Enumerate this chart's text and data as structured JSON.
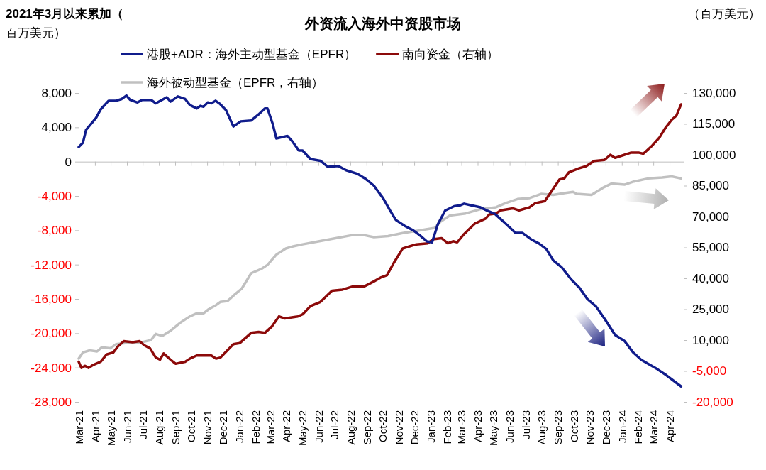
{
  "chart_data": {
    "type": "line",
    "title": "外资流入海外中资股市场",
    "ylabel": "2021年3月以来累加（百万美元）",
    "annotations": [
      "（百万美元）"
    ],
    "legend": "top",
    "xlim": [
      "2021-03-01",
      "2024-04-28"
    ],
    "xticks": [
      {
        "value": "2021-03-01",
        "label": "Mar-21"
      },
      {
        "value": "2021-04-01",
        "label": "Apr-21"
      },
      {
        "value": "2021-05-01",
        "label": "May-21"
      },
      {
        "value": "2021-06-01",
        "label": "Jun-21"
      },
      {
        "value": "2021-07-01",
        "label": "Jul-21"
      },
      {
        "value": "2021-08-01",
        "label": "Aug-21"
      },
      {
        "value": "2021-09-01",
        "label": "Sep-21"
      },
      {
        "value": "2021-10-01",
        "label": "Oct-21"
      },
      {
        "value": "2021-11-01",
        "label": "Nov-21"
      },
      {
        "value": "2021-12-01",
        "label": "Dec-21"
      },
      {
        "value": "2022-01-01",
        "label": "Jan-22"
      },
      {
        "value": "2022-02-01",
        "label": "Feb-22"
      },
      {
        "value": "2022-03-01",
        "label": "Mar-22"
      },
      {
        "value": "2022-04-01",
        "label": "Apr-22"
      },
      {
        "value": "2022-05-01",
        "label": "May-22"
      },
      {
        "value": "2022-06-01",
        "label": "Jun-22"
      },
      {
        "value": "2022-07-01",
        "label": "Jul-22"
      },
      {
        "value": "2022-08-01",
        "label": "Aug-22"
      },
      {
        "value": "2022-09-01",
        "label": "Sep-22"
      },
      {
        "value": "2022-10-01",
        "label": "Oct-22"
      },
      {
        "value": "2022-11-01",
        "label": "Nov-22"
      },
      {
        "value": "2022-12-01",
        "label": "Dec-22"
      },
      {
        "value": "2023-01-01",
        "label": "Jan-23"
      },
      {
        "value": "2023-02-01",
        "label": "Feb-23"
      },
      {
        "value": "2023-03-01",
        "label": "Mar-23"
      },
      {
        "value": "2023-04-01",
        "label": "Apr-23"
      },
      {
        "value": "2023-05-01",
        "label": "May-23"
      },
      {
        "value": "2023-06-01",
        "label": "Jun-23"
      },
      {
        "value": "2023-07-01",
        "label": "Jul-23"
      },
      {
        "value": "2023-08-01",
        "label": "Aug-23"
      },
      {
        "value": "2023-09-01",
        "label": "Sep-23"
      },
      {
        "value": "2023-10-01",
        "label": "Oct-23"
      },
      {
        "value": "2023-11-01",
        "label": "Nov-23"
      },
      {
        "value": "2023-12-01",
        "label": "Dec-23"
      },
      {
        "value": "2024-01-01",
        "label": "Jan-24"
      },
      {
        "value": "2024-02-01",
        "label": "Feb-24"
      },
      {
        "value": "2024-03-01",
        "label": "Mar-24"
      },
      {
        "value": "2024-04-01",
        "label": "Apr-24"
      }
    ],
    "ylim": [
      -28000,
      8000
    ],
    "yticks": [
      {
        "value": 8000,
        "label": "8,000"
      },
      {
        "value": 4000,
        "label": "4,000"
      },
      0,
      {
        "value": -4000,
        "label": "-4,000"
      },
      {
        "value": -8000,
        "label": "-8,000"
      },
      {
        "value": -12000,
        "label": "-12,000"
      },
      {
        "value": -16000,
        "label": "-16,000"
      },
      {
        "value": -20000,
        "label": "-20,000"
      },
      {
        "value": -24000,
        "label": "-24,000"
      },
      {
        "value": -28000,
        "label": "-28,000"
      }
    ],
    "y2lim": [
      -20000,
      130000
    ],
    "y2ticks": [
      {
        "value": 130000,
        "label": "130,000"
      },
      {
        "value": 115000,
        "label": "115,000"
      },
      {
        "value": 100000,
        "label": "100,000"
      },
      {
        "value": 85000,
        "label": "85,000"
      },
      {
        "value": 70000,
        "label": "70,000"
      },
      {
        "value": 55000,
        "label": "55,000"
      },
      {
        "value": 40000,
        "label": "40,000"
      },
      {
        "value": 25000,
        "label": "25,000"
      },
      {
        "value": 10000,
        "label": "10,000"
      },
      {
        "value": -5000,
        "label": "-5,000"
      },
      {
        "value": -20000,
        "label": "-20,000"
      }
    ],
    "series": [
      {
        "name": "港股+ADR：海外主动型基金（EPFR）",
        "color": "#101c8c",
        "x": [
          "2021-03-01",
          "2021-03-09",
          "2021-03-15",
          "2021-04-03",
          "2021-04-12",
          "2021-04-27",
          "2021-05-11",
          "2021-05-22",
          "2021-05-31",
          "2021-06-07",
          "2021-06-21",
          "2021-06-30",
          "2021-07-17",
          "2021-07-26",
          "2021-08-16",
          "2021-08-23",
          "2021-09-06",
          "2021-09-20",
          "2021-09-29",
          "2021-10-12",
          "2021-10-19",
          "2021-10-25",
          "2021-11-02",
          "2021-11-09",
          "2021-11-17",
          "2021-11-26",
          "2021-12-07",
          "2021-12-21",
          "2022-01-04",
          "2022-01-24",
          "2022-02-07",
          "2022-02-19",
          "2022-02-24",
          "2022-03-06",
          "2022-03-13",
          "2022-04-03",
          "2022-04-12",
          "2022-04-25",
          "2022-05-02",
          "2022-05-17",
          "2022-06-05",
          "2022-06-19",
          "2022-07-09",
          "2022-07-24",
          "2022-08-14",
          "2022-08-30",
          "2022-09-15",
          "2022-10-03",
          "2022-10-16",
          "2022-10-27",
          "2022-11-13",
          "2022-11-29",
          "2022-12-12",
          "2022-12-25",
          "2023-01-04",
          "2023-01-15",
          "2023-01-29",
          "2023-02-15",
          "2023-02-26",
          "2023-03-06",
          "2023-03-20",
          "2023-04-05",
          "2023-04-19",
          "2023-05-04",
          "2023-05-24",
          "2023-06-12",
          "2023-06-25",
          "2023-07-13",
          "2023-07-26",
          "2023-08-10",
          "2023-08-23",
          "2023-09-08",
          "2023-09-26",
          "2023-10-12",
          "2023-10-27",
          "2023-11-13",
          "2023-11-30",
          "2023-12-19",
          "2024-01-06",
          "2024-01-22",
          "2024-02-07",
          "2024-03-09",
          "2024-03-26",
          "2024-04-23"
        ],
        "values": [
          1700,
          2200,
          3700,
          5100,
          6100,
          7100,
          7100,
          7300,
          7700,
          7200,
          6900,
          7200,
          7200,
          6800,
          7500,
          7000,
          7600,
          7300,
          6600,
          6200,
          6500,
          6400,
          6900,
          6800,
          7100,
          6700,
          6000,
          4100,
          4700,
          4800,
          5500,
          6200,
          6200,
          4400,
          2700,
          3000,
          2400,
          1300,
          1300,
          300,
          100,
          -600,
          -500,
          -1000,
          -1400,
          -2000,
          -2800,
          -4300,
          -5700,
          -6800,
          -7500,
          -8000,
          -8600,
          -9300,
          -9400,
          -7300,
          -5700,
          -5200,
          -5100,
          -4900,
          -5100,
          -5300,
          -5700,
          -6100,
          -7200,
          -8300,
          -8300,
          -9100,
          -9500,
          -10200,
          -11500,
          -12300,
          -13700,
          -14700,
          -16000,
          -16900,
          -18400,
          -20200,
          -20900,
          -22200,
          -23100,
          -24200,
          -24900,
          -26200
        ]
      },
      {
        "name": "南向资金（右轴）",
        "color": "#8c0a0a",
        "axis": "y2",
        "x": [
          "2021-03-01",
          "2021-03-06",
          "2021-03-13",
          "2021-03-20",
          "2021-03-29",
          "2021-04-12",
          "2021-04-23",
          "2021-05-06",
          "2021-05-15",
          "2021-05-26",
          "2021-06-12",
          "2021-06-25",
          "2021-07-04",
          "2021-07-15",
          "2021-07-26",
          "2021-08-03",
          "2021-08-10",
          "2021-08-23",
          "2021-09-02",
          "2021-09-20",
          "2021-09-29",
          "2021-10-12",
          "2021-11-09",
          "2021-11-18",
          "2021-11-26",
          "2021-12-21",
          "2022-01-02",
          "2022-01-24",
          "2022-02-07",
          "2022-02-19",
          "2022-03-04",
          "2022-03-18",
          "2022-03-29",
          "2022-04-23",
          "2022-05-02",
          "2022-05-17",
          "2022-06-05",
          "2022-06-27",
          "2022-07-17",
          "2022-08-05",
          "2022-08-27",
          "2022-09-15",
          "2022-09-29",
          "2022-10-10",
          "2022-10-23",
          "2022-11-09",
          "2022-11-22",
          "2022-12-05",
          "2022-12-27",
          "2023-01-06",
          "2023-01-22",
          "2023-02-03",
          "2023-02-13",
          "2023-02-21",
          "2023-03-06",
          "2023-03-26",
          "2023-04-16",
          "2023-04-23",
          "2023-05-06",
          "2023-05-15",
          "2023-06-07",
          "2023-06-19",
          "2023-07-09",
          "2023-07-20",
          "2023-08-07",
          "2023-08-19",
          "2023-09-04",
          "2023-09-13",
          "2023-09-22",
          "2023-10-12",
          "2023-10-25",
          "2023-11-09",
          "2023-11-29",
          "2023-12-10",
          "2023-12-19",
          "2024-01-06",
          "2024-01-18",
          "2024-02-03",
          "2024-02-11",
          "2024-02-28",
          "2024-03-13",
          "2024-03-24",
          "2024-04-05",
          "2024-04-14",
          "2024-04-23"
        ],
        "values": [
          -500,
          -3500,
          -2500,
          -3500,
          -2000,
          -500,
          3000,
          4000,
          7000,
          9500,
          9000,
          9500,
          7500,
          6000,
          1500,
          500,
          3500,
          500,
          -1500,
          -500,
          1000,
          2500,
          2500,
          1000,
          1500,
          8000,
          8500,
          13500,
          14000,
          13500,
          16500,
          21500,
          20500,
          21500,
          22500,
          26500,
          28500,
          34000,
          34500,
          36000,
          36000,
          38500,
          40500,
          41500,
          47500,
          54500,
          55500,
          56500,
          57000,
          59000,
          59500,
          57000,
          58000,
          57500,
          61500,
          66500,
          69000,
          71000,
          71500,
          73000,
          74000,
          73000,
          74500,
          76500,
          77500,
          82000,
          88000,
          88500,
          91500,
          93500,
          94500,
          97000,
          97500,
          100000,
          98500,
          100000,
          101000,
          101000,
          100500,
          104500,
          108500,
          113000,
          117000,
          119000,
          124500
        ]
      },
      {
        "name": "海外被动型基金（EPFR，右轴）",
        "color": "#c0c0c0",
        "axis": "y2",
        "x": [
          "2021-03-01",
          "2021-03-09",
          "2021-03-22",
          "2021-04-05",
          "2021-04-14",
          "2021-04-30",
          "2021-05-11",
          "2021-05-29",
          "2021-06-30",
          "2021-07-17",
          "2021-07-26",
          "2021-08-07",
          "2021-08-23",
          "2021-09-11",
          "2021-09-29",
          "2021-10-12",
          "2021-10-25",
          "2021-11-04",
          "2021-11-18",
          "2021-11-26",
          "2021-12-10",
          "2021-12-23",
          "2022-01-06",
          "2022-01-24",
          "2022-02-12",
          "2022-02-24",
          "2022-03-13",
          "2022-03-31",
          "2022-04-14",
          "2022-05-02",
          "2022-06-03",
          "2022-07-04",
          "2022-08-05",
          "2022-08-27",
          "2022-09-15",
          "2022-10-12",
          "2022-11-09",
          "2022-12-05",
          "2023-01-09",
          "2023-01-20",
          "2023-02-07",
          "2023-03-09",
          "2023-04-05",
          "2023-05-06",
          "2023-05-24",
          "2023-06-16",
          "2023-07-09",
          "2023-07-31",
          "2023-08-23",
          "2023-09-15",
          "2023-09-30",
          "2023-10-07",
          "2023-11-04",
          "2023-11-26",
          "2023-12-12",
          "2024-01-06",
          "2024-01-24",
          "2024-02-20",
          "2024-03-18",
          "2024-04-05",
          "2024-04-23"
        ],
        "values": [
          1000,
          4000,
          5000,
          4500,
          6500,
          6000,
          8000,
          8500,
          9000,
          10000,
          13000,
          12000,
          14500,
          18500,
          21500,
          23000,
          23000,
          25000,
          27000,
          28500,
          29000,
          32000,
          35000,
          42500,
          44500,
          46500,
          51500,
          54500,
          55500,
          56500,
          58000,
          59500,
          61000,
          61000,
          60000,
          60500,
          62000,
          63000,
          64500,
          67500,
          70500,
          71500,
          73500,
          74500,
          76500,
          78500,
          79000,
          81000,
          80500,
          81500,
          82000,
          81000,
          80500,
          84000,
          86000,
          85500,
          87000,
          88500,
          89000,
          89500,
          88500
        ]
      }
    ]
  }
}
